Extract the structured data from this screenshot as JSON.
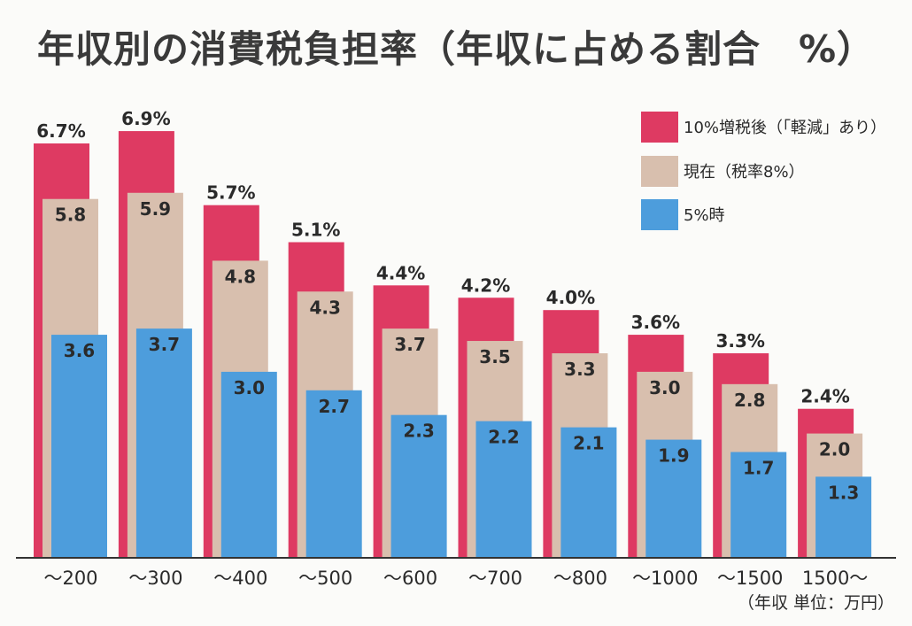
{
  "chart_data": {
    "type": "bar",
    "title": "年収別の消費税負担率（年収に占める割合　%）",
    "xlabel": "",
    "ylabel": "",
    "unit_note": "（年収 単位：万円）",
    "categories": [
      "〜200",
      "〜300",
      "〜400",
      "〜500",
      "〜600",
      "〜700",
      "〜800",
      "〜1000",
      "〜1500",
      "1500〜"
    ],
    "series": [
      {
        "name": "10%増税後（「軽減」あり）",
        "color": "#de3a62",
        "values": [
          6.7,
          6.9,
          5.7,
          5.1,
          4.4,
          4.2,
          4.0,
          3.6,
          3.3,
          2.4
        ],
        "labels": [
          "6.7%",
          "6.9%",
          "5.7%",
          "5.1%",
          "4.4%",
          "4.2%",
          "4.0%",
          "3.6%",
          "3.3%",
          "2.4%"
        ]
      },
      {
        "name": "現在（税率8%）",
        "color": "#d8bfae",
        "values": [
          5.8,
          5.9,
          4.8,
          4.3,
          3.7,
          3.5,
          3.3,
          3.0,
          2.8,
          2.0
        ],
        "labels": [
          "5.8",
          "5.9",
          "4.8",
          "4.3",
          "3.7",
          "3.5",
          "3.3",
          "3.0",
          "2.8",
          "2.0"
        ]
      },
      {
        "name": "5%時",
        "color": "#4d9ddc",
        "values": [
          3.6,
          3.7,
          3.0,
          2.7,
          2.3,
          2.2,
          2.1,
          1.9,
          1.7,
          1.3
        ],
        "labels": [
          "3.6",
          "3.7",
          "3.0",
          "2.7",
          "2.3",
          "2.2",
          "2.1",
          "1.9",
          "1.7",
          "1.3"
        ]
      }
    ],
    "ylim": [
      0,
      7
    ],
    "grid": false,
    "legend": "top-right"
  }
}
